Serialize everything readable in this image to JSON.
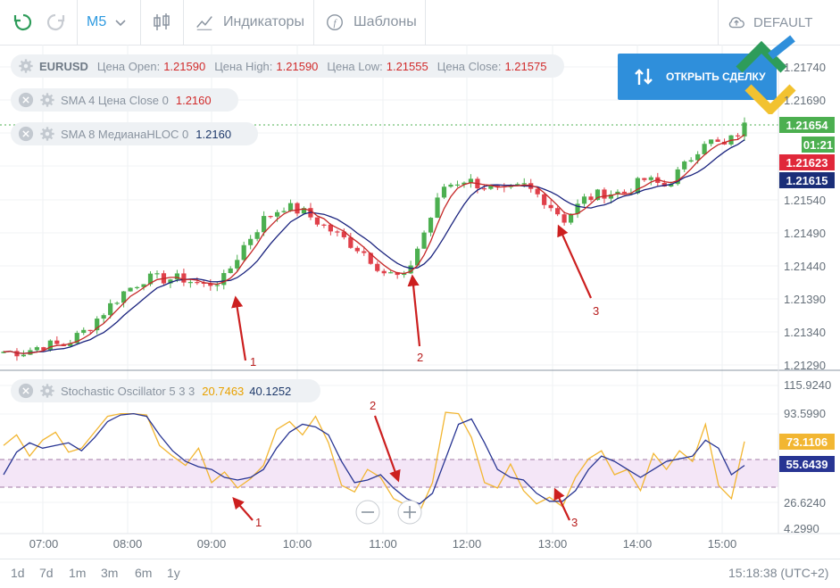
{
  "toolbar": {
    "timeframe": "M5",
    "indicators_label": "Индикаторы",
    "templates_label": "Шаблоны",
    "layout_label": "DEFAULT"
  },
  "legend": {
    "symbol": "EURUSD",
    "open_label": "Цена Open:",
    "open_value": "1.21590",
    "high_label": "Цена High:",
    "high_value": "1.21590",
    "low_label": "Цена Low:",
    "low_value": "1.21555",
    "close_label": "Цена Close:",
    "close_value": "1.21575",
    "sma4_label": "SMA 4 Цена Close 0",
    "sma4_value": "1.2160",
    "sma8_label": "SMA 8 МедианаHLOC 0",
    "sma8_value": "1.2160",
    "stoch_label": "Stochastic Oscillator 5 3 3",
    "stoch_k": "20.7463",
    "stoch_d": "40.1252"
  },
  "open_deal_label": "ОТКРЫТЬ СДЕЛКУ",
  "price_axis": [
    "1.21740",
    "1.21690",
    "1.21540",
    "1.21490",
    "1.21440",
    "1.21390",
    "1.21340",
    "1.21290"
  ],
  "price_tags": {
    "current": "1.21654",
    "timer": "01:21",
    "sma4": "1.21623",
    "sma8": "1.21615"
  },
  "stoch_axis": [
    "115.9240",
    "93.5990",
    "26.6240",
    "4.2990"
  ],
  "stoch_tags": {
    "k": "73.1106",
    "d": "55.6439"
  },
  "time_axis": [
    "07:00",
    "08:00",
    "09:00",
    "10:00",
    "11:00",
    "12:00",
    "13:00",
    "14:00",
    "15:00"
  ],
  "periods": [
    "1d",
    "7d",
    "1m",
    "3m",
    "6m",
    "1y"
  ],
  "clock": "15:18:38 (UTC+2)",
  "annotations": {
    "price": [
      "1",
      "2",
      "3"
    ],
    "stoch": [
      "2",
      "1",
      "3"
    ]
  },
  "colors": {
    "bull": "#4caf50",
    "bear": "#e0404a",
    "sma4": "#c62828",
    "sma8": "#1a237e",
    "stoch_k": "#f2b632",
    "stoch_d": "#283593",
    "arrow": "#cc1f1f",
    "band": "#f4e6f7"
  },
  "chart_data": [
    {
      "type": "candlestick",
      "title": "EURUSD M5",
      "ylim": [
        1.2129,
        1.2175
      ],
      "series": [
        {
          "name": "SMA 4 Цена Close 0",
          "last": 1.216
        },
        {
          "name": "SMA 8 МедианаHLOC 0",
          "last": 1.216
        }
      ],
      "x": [
        "07:00",
        "08:00",
        "09:00",
        "10:00",
        "11:00",
        "12:00",
        "13:00",
        "14:00",
        "15:00"
      ],
      "close_path": [
        1.2131,
        1.2131,
        1.2132,
        1.2132,
        1.2134,
        1.2137,
        1.214,
        1.2142,
        1.2142,
        1.2142,
        1.2141,
        1.2142,
        1.2147,
        1.2151,
        1.2153,
        1.2152,
        1.215,
        1.2148,
        1.2146,
        1.2143,
        1.2142,
        1.2149,
        1.2156,
        1.2157,
        1.2156,
        1.2155,
        1.2156,
        1.2154,
        1.2151,
        1.2154,
        1.2155,
        1.2155,
        1.2157,
        1.2156,
        1.2159,
        1.2163,
        1.2162,
        1.2165
      ]
    },
    {
      "type": "line",
      "title": "Stochastic Oscillator 5 3 3",
      "ylim": [
        4.299,
        115.924
      ],
      "series": [
        {
          "name": "%K",
          "last": 73.1106
        },
        {
          "name": "%D",
          "last": 55.6439
        }
      ],
      "k_path": [
        70,
        78,
        62,
        74,
        80,
        65,
        68,
        80,
        92,
        94,
        94,
        93,
        70,
        62,
        55,
        68,
        42,
        50,
        38,
        45,
        55,
        82,
        88,
        78,
        92,
        72,
        40,
        35,
        52,
        46,
        30,
        25,
        20,
        42,
        95,
        94,
        76,
        42,
        38,
        56,
        36,
        26,
        31,
        24,
        46,
        60,
        66,
        48,
        52,
        36,
        64,
        52,
        66,
        58,
        86,
        40,
        30,
        73
      ],
      "d_path": [
        48,
        65,
        72,
        68,
        70,
        72,
        66,
        76,
        88,
        93,
        94,
        92,
        78,
        66,
        58,
        54,
        52,
        46,
        44,
        46,
        52,
        68,
        80,
        86,
        84,
        78,
        58,
        42,
        44,
        48,
        38,
        30,
        26,
        34,
        60,
        86,
        90,
        72,
        52,
        46,
        44,
        34,
        28,
        28,
        36,
        52,
        62,
        58,
        52,
        46,
        52,
        58,
        60,
        62,
        74,
        68,
        48,
        55
      ]
    }
  ]
}
